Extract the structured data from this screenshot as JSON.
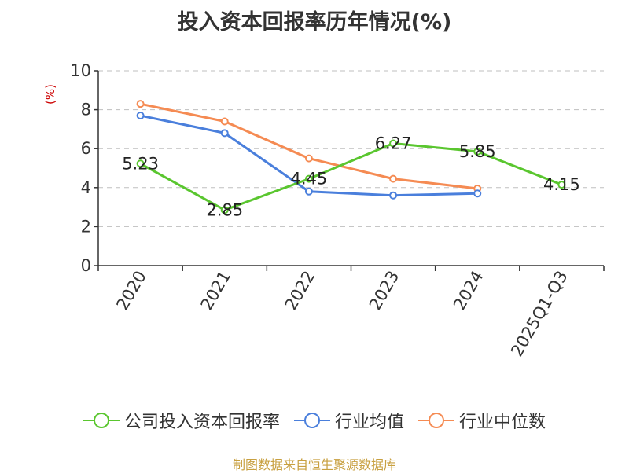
{
  "colors": {
    "company": "#5ac62f",
    "industry_avg": "#4a7fdc",
    "industry_median": "#f58b53",
    "axis": "#333333",
    "grid": "#bfbfbf",
    "unit": "#cc0000",
    "source": "#c8a040"
  },
  "chart_data": {
    "type": "line",
    "title": "投入资本回报率历年情况(%)",
    "ylabel": "(%)",
    "xlabel": "",
    "ylim": [
      0,
      10
    ],
    "yticks": [
      0,
      2,
      4,
      6,
      8,
      10
    ],
    "grid": true,
    "legend_position": "bottom",
    "categories": [
      "2020",
      "2021",
      "2022",
      "2023",
      "2024",
      "2025Q1-Q3"
    ],
    "series": [
      {
        "name": "公司投入资本回报率",
        "color_key": "company",
        "values": [
          5.23,
          2.85,
          4.45,
          6.27,
          5.85,
          4.15
        ],
        "labels": true
      },
      {
        "name": "行业均值",
        "color_key": "industry_avg",
        "values": [
          7.7,
          6.8,
          3.8,
          3.6,
          3.7,
          null
        ],
        "labels": false
      },
      {
        "name": "行业中位数",
        "color_key": "industry_median",
        "values": [
          8.3,
          7.4,
          5.5,
          4.45,
          3.95,
          null
        ],
        "labels": false
      }
    ]
  },
  "source": "制图数据来自恒生聚源数据库"
}
